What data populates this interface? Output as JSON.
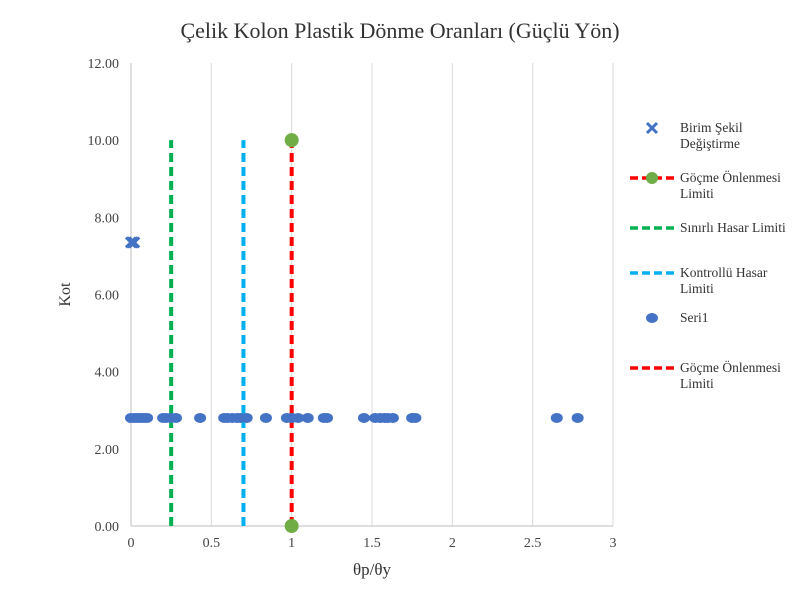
{
  "chart_data": {
    "type": "scatter",
    "title": "Çelik Kolon Plastik Dönme Oranları (Güçlü Yön)",
    "xlabel": "θp/θy",
    "ylabel": "Kot",
    "xlim": [
      0,
      3
    ],
    "ylim": [
      0,
      12
    ],
    "x_ticks": [
      "0",
      "0.5",
      "1",
      "1.5",
      "2",
      "2.5",
      "3"
    ],
    "y_ticks": [
      "0.00",
      "2.00",
      "4.00",
      "6.00",
      "8.00",
      "10.00",
      "12.00"
    ],
    "grid": "vertical",
    "legend_position": "right",
    "series": [
      {
        "name": "Birim Şekil Değiştirme",
        "kind": "markers",
        "marker": "x",
        "color": "#4472C4",
        "points": [
          [
            0,
            7.35
          ],
          [
            0.01,
            7.35
          ],
          [
            0.02,
            7.35
          ]
        ]
      },
      {
        "name": "Göçme Önlenmesi Limiti",
        "kind": "dashed-line-with-markers",
        "color": "#FF0000",
        "marker_color": "#70AD47",
        "points": [
          [
            1.0,
            0
          ],
          [
            1.0,
            10
          ]
        ]
      },
      {
        "name": "Sınırlı Hasar Limiti",
        "kind": "dashed-line",
        "color": "#00B050",
        "points": [
          [
            0.25,
            0
          ],
          [
            0.25,
            10
          ]
        ]
      },
      {
        "name": "Kontrollü Hasar Limiti",
        "kind": "dashed-line",
        "color": "#00B0F0",
        "points": [
          [
            0.7,
            0
          ],
          [
            0.7,
            10
          ]
        ]
      },
      {
        "name": "Seri1",
        "kind": "markers",
        "marker": "circle",
        "color": "#4472C4",
        "points": [
          [
            0.0,
            2.8
          ],
          [
            0.02,
            2.8
          ],
          [
            0.04,
            2.8
          ],
          [
            0.06,
            2.8
          ],
          [
            0.08,
            2.8
          ],
          [
            0.1,
            2.8
          ],
          [
            0.2,
            2.8
          ],
          [
            0.22,
            2.8
          ],
          [
            0.25,
            2.8
          ],
          [
            0.28,
            2.8
          ],
          [
            0.43,
            2.8
          ],
          [
            0.58,
            2.8
          ],
          [
            0.6,
            2.8
          ],
          [
            0.63,
            2.8
          ],
          [
            0.66,
            2.8
          ],
          [
            0.68,
            2.8
          ],
          [
            0.72,
            2.8
          ],
          [
            0.84,
            2.8
          ],
          [
            0.97,
            2.8
          ],
          [
            1.0,
            2.8
          ],
          [
            1.04,
            2.8
          ],
          [
            1.1,
            2.8
          ],
          [
            1.2,
            2.8
          ],
          [
            1.22,
            2.8
          ],
          [
            1.45,
            2.8
          ],
          [
            1.52,
            2.8
          ],
          [
            1.55,
            2.8
          ],
          [
            1.58,
            2.8
          ],
          [
            1.6,
            2.8
          ],
          [
            1.63,
            2.8
          ],
          [
            1.75,
            2.8
          ],
          [
            1.77,
            2.8
          ],
          [
            2.65,
            2.8
          ],
          [
            2.78,
            2.8
          ]
        ]
      },
      {
        "name": "Göçme Önlenmesi Limiti",
        "kind": "dashed-line",
        "color": "#FF0000",
        "points": []
      }
    ]
  }
}
